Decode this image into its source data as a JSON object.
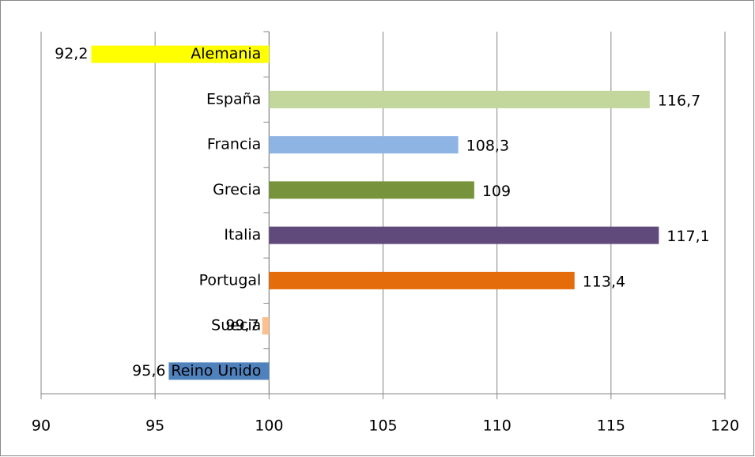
{
  "chart_data": {
    "type": "bar",
    "orientation": "horizontal",
    "categories": [
      "Alemania",
      "España",
      "Francia",
      "Grecia",
      "Italia",
      "Portugal",
      "Suecia",
      "Reino Unido"
    ],
    "values": [
      92.2,
      116.7,
      108.3,
      109,
      117.1,
      113.4,
      99.7,
      95.6
    ],
    "value_labels": [
      "92,2",
      "116,7",
      "108,3",
      "109",
      "117,1",
      "113,4",
      "99,7",
      "95,6"
    ],
    "colors": [
      "#ffff00",
      "#c3d69b",
      "#8eb4e3",
      "#77933c",
      "#604a7b",
      "#e46c0a",
      "#fac090",
      "#4f81bd"
    ],
    "xlim": [
      90,
      120
    ],
    "xticks": [
      90,
      95,
      100,
      105,
      110,
      115,
      120
    ],
    "baseline": 100,
    "grid": true
  }
}
